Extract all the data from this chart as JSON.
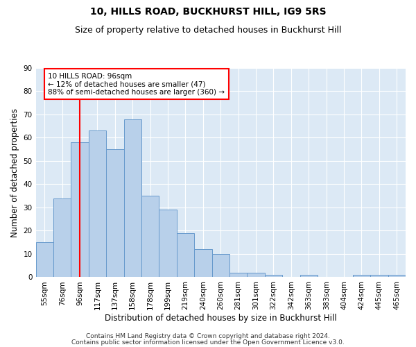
{
  "title": "10, HILLS ROAD, BUCKHURST HILL, IG9 5RS",
  "subtitle": "Size of property relative to detached houses in Buckhurst Hill",
  "xlabel": "Distribution of detached houses by size in Buckhurst Hill",
  "ylabel": "Number of detached properties",
  "categories": [
    "55sqm",
    "76sqm",
    "96sqm",
    "117sqm",
    "137sqm",
    "158sqm",
    "178sqm",
    "199sqm",
    "219sqm",
    "240sqm",
    "260sqm",
    "281sqm",
    "301sqm",
    "322sqm",
    "342sqm",
    "363sqm",
    "383sqm",
    "404sqm",
    "424sqm",
    "445sqm",
    "465sqm"
  ],
  "values": [
    15,
    34,
    58,
    63,
    55,
    68,
    35,
    29,
    19,
    12,
    10,
    2,
    2,
    1,
    0,
    1,
    0,
    0,
    1,
    1,
    1
  ],
  "bar_color": "#b8d0ea",
  "bar_edge_color": "#6699cc",
  "red_line_index": 2,
  "annotation_text": "10 HILLS ROAD: 96sqm\n← 12% of detached houses are smaller (47)\n88% of semi-detached houses are larger (360) →",
  "annotation_box_color": "white",
  "annotation_box_edge_color": "red",
  "ylim": [
    0,
    90
  ],
  "yticks": [
    0,
    10,
    20,
    30,
    40,
    50,
    60,
    70,
    80,
    90
  ],
  "plot_bg_color": "#dce9f5",
  "footer_line1": "Contains HM Land Registry data © Crown copyright and database right 2024.",
  "footer_line2": "Contains public sector information licensed under the Open Government Licence v3.0.",
  "title_fontsize": 10,
  "subtitle_fontsize": 9,
  "tick_fontsize": 7.5,
  "ylabel_fontsize": 8.5,
  "xlabel_fontsize": 8.5,
  "footer_fontsize": 6.5
}
